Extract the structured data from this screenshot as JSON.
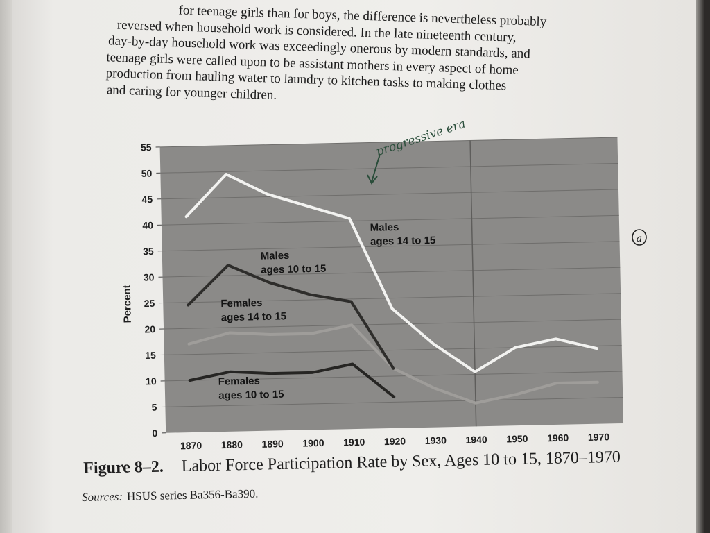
{
  "page": {
    "text_lines": [
      "for teenage girls than for boys, the difference is nevertheless probably",
      "reversed when household work is considered. In the late nineteenth century,",
      "day-by-day household work was exceedingly onerous by modern standards, and",
      "teenage girls were called upon to be assistant mothers in every aspect of home",
      "production from hauling water to laundry to kitchen tasks to making clothes",
      "and caring for younger children."
    ],
    "handwritten_note": "progressive era",
    "margin_mark": "a",
    "caption": {
      "label": "Figure 8–2.",
      "title": "Labor Force Participation Rate by Sex, Ages 10 to 15, 1870–1970"
    },
    "sources": {
      "label": "Sources:",
      "text": "HSUS series Ba356-Ba390."
    }
  },
  "colors": {
    "plot_background": "#8b8a88",
    "gridline": "#6f6e6c",
    "males_14_15": "#f2f2f0",
    "males_10_15": "#2e2d2b",
    "females_14_15": "#9f9d9a",
    "females_10_15": "#262523",
    "ink": "#2a4d3a"
  },
  "chart_data": {
    "type": "line",
    "title": "Labor Force Participation Rate by Sex, Ages 10 to 15, 1870–1970",
    "xlabel": "",
    "ylabel": "Percent",
    "x": [
      1870,
      1880,
      1890,
      1900,
      1910,
      1920,
      1930,
      1940,
      1950,
      1960,
      1970
    ],
    "x_tick_labels": [
      "1870",
      "1880",
      "1890",
      "1900",
      "1910",
      "1920",
      "1930",
      "1940",
      "1950",
      "1960",
      "1970"
    ],
    "y_ticks": [
      0,
      5,
      10,
      15,
      20,
      25,
      30,
      35,
      40,
      45,
      50,
      55
    ],
    "ylim": [
      0,
      55
    ],
    "grid": true,
    "vertical_line_at": 1940,
    "series": [
      {
        "name": "Males ages 14 to 15",
        "label_lines": [
          "Males",
          "ages 14 to 15"
        ],
        "color_key": "males_14_15",
        "values": [
          41.5,
          49.5,
          45.5,
          43,
          40.5,
          23,
          16,
          10.5,
          15,
          16.5,
          14.5
        ]
      },
      {
        "name": "Males ages 10 to 15",
        "label_lines": [
          "Males",
          "ages 10 to 15"
        ],
        "color_key": "males_10_15",
        "values": [
          24.5,
          32,
          28.5,
          26,
          24.5,
          11.5,
          null,
          null,
          null,
          null,
          null
        ]
      },
      {
        "name": "Females ages 14 to 15",
        "label_lines": [
          "Females",
          "ages 14 to 15"
        ],
        "color_key": "females_14_15",
        "values": [
          17,
          19,
          18.5,
          18.5,
          20,
          11.5,
          7.5,
          4.5,
          6,
          8,
          8
        ]
      },
      {
        "name": "Females ages 10 to 15",
        "label_lines": [
          "Females",
          "ages 10 to 15"
        ],
        "color_key": "females_10_15",
        "values": [
          10,
          11.5,
          11,
          11,
          12.5,
          6,
          null,
          null,
          null,
          null,
          null
        ]
      }
    ]
  }
}
